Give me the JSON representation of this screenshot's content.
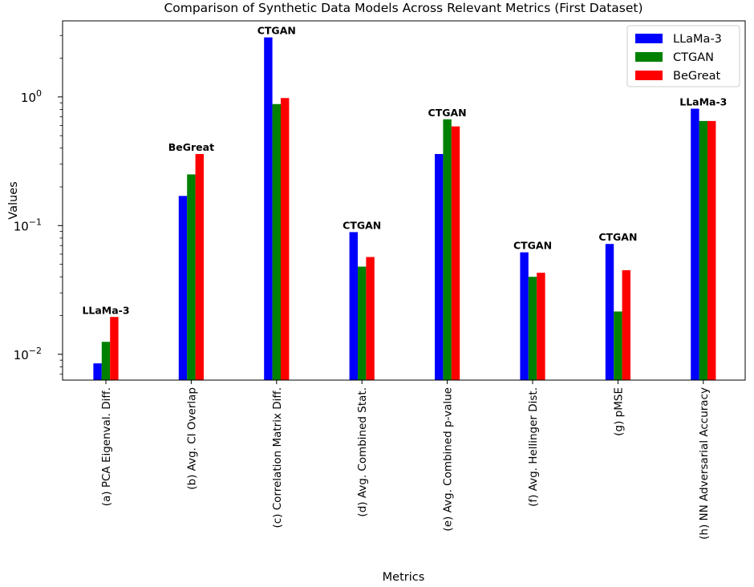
{
  "chart_data": {
    "type": "bar",
    "title": "Comparison of Synthetic Data Models Across Relevant Metrics (First Dataset)",
    "xlabel": "Metrics",
    "ylabel": "Values",
    "yscale": "log",
    "ylim": [
      0.0063,
      3.9
    ],
    "yticks": [
      {
        "value": 0.01,
        "base": "10",
        "exp": "−2"
      },
      {
        "value": 0.1,
        "base": "10",
        "exp": "−1"
      },
      {
        "value": 1,
        "base": "10",
        "exp": "0"
      }
    ],
    "categories": [
      "(a) PCA Eigenval. Diff.",
      "(b) Avg. CI Overlap",
      "(c) Correlation Matrix Diff.",
      "(d) Avg. Combined Stat.",
      "(e) Avg. Combined p-value",
      "(f) Avg. Hellinger Dist.",
      "(g) pMSE",
      "(h) NN Adversarial Accuracy"
    ],
    "series": [
      {
        "name": "LLaMa-3",
        "color": "#0000ff",
        "values": [
          0.0085,
          0.17,
          2.9,
          0.089,
          0.36,
          0.062,
          0.072,
          0.81
        ]
      },
      {
        "name": "CTGAN",
        "color": "#008000",
        "values": [
          0.0125,
          0.25,
          0.88,
          0.048,
          0.67,
          0.04,
          0.0215,
          0.65
        ]
      },
      {
        "name": "BeGreat",
        "color": "#ff0000",
        "values": [
          0.0195,
          0.36,
          0.98,
          0.057,
          0.59,
          0.043,
          0.045,
          0.65
        ]
      }
    ],
    "annotations": [
      "LLaMa-3",
      "BeGreat",
      "CTGAN",
      "CTGAN",
      "CTGAN",
      "CTGAN",
      "CTGAN",
      "LLaMa-3"
    ],
    "legend_position": "top-right",
    "grid": false
  }
}
